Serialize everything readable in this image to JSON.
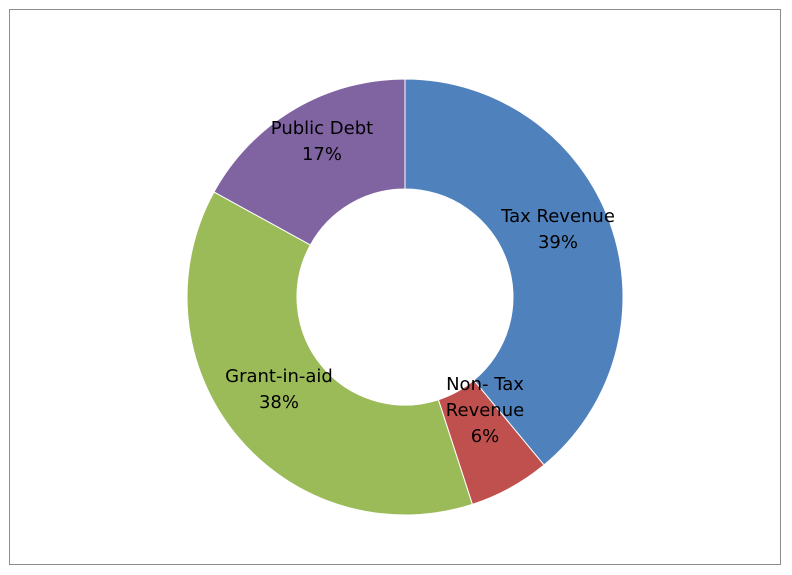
{
  "chart_data": {
    "type": "donut",
    "title": "",
    "legend": "none",
    "slices": [
      {
        "name": "Tax Revenue",
        "value": 39,
        "percent_label": "39%",
        "color": "#4F81BD"
      },
      {
        "name": "Non- Tax Revenue",
        "value": 6,
        "percent_label": "6%",
        "color": "#C0504D"
      },
      {
        "name": "Grant-in-aid",
        "value": 38,
        "percent_label": "38%",
        "color": "#9BBB59"
      },
      {
        "name": "Public Debt",
        "value": 17,
        "percent_label": "17%",
        "color": "#8064A2"
      }
    ],
    "labels": [
      {
        "lines": [
          "Tax Revenue",
          "39%"
        ]
      },
      {
        "lines": [
          "Non- Tax",
          "Revenue",
          "6%"
        ]
      },
      {
        "lines": [
          "Grant-in-aid",
          "38%"
        ]
      },
      {
        "lines": [
          "Public Debt",
          "17%"
        ]
      }
    ]
  }
}
